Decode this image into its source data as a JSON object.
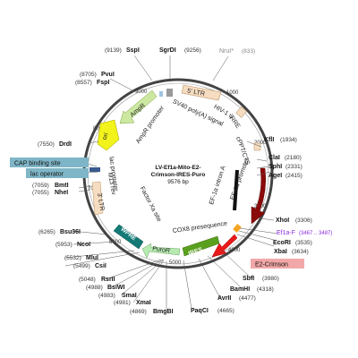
{
  "plasmid": {
    "name_line1": "LV-Ef1a-Mito-E2-",
    "name_line2": "Crimson-IRES-Puro",
    "length_label": "9576 bp"
  },
  "ticks": {
    "t1000": "1000",
    "t2000": "2000",
    "t3000": "3000",
    "t4000": "4000",
    "t5000": "5000",
    "t6000": "6000",
    "t7000": "7000",
    "t8000": "8000",
    "t9000": "9000"
  },
  "features": {
    "ltr5": "5' LTR",
    "hiv_psi": "HIV-1 ψ",
    "rre": "RRE",
    "cppt": "cPPT/CTS",
    "ef1a_promoter": "EF-1α promoter",
    "ef1a_intron": "EF-1α intron A",
    "cox8": "COX8 presequence",
    "ires": "IRES",
    "puror": "PuroR",
    "wpre": "WPRE",
    "factor_xa": "Factor Xa site",
    "ltr3": "3' LTR",
    "m13rev": "M13 rev",
    "lac_promoter": "lac promoter",
    "ori": "ori",
    "ampr": "AmpR",
    "ampr_promoter": "AmpR promoter",
    "sv40": "SV40 poly(A) signal"
  },
  "sites": {
    "sspi": {
      "name": "SspI",
      "pos": "(9139)"
    },
    "sgrdi": {
      "name": "SgrDI",
      "pos": "(9256)"
    },
    "nrui": {
      "name": "NruI*",
      "pos": "(833)"
    },
    "pvui": {
      "name": "PvuI",
      "pos": "(8705)"
    },
    "fspi": {
      "name": "FspI",
      "pos": "(8557)"
    },
    "drdi": {
      "name": "DrdI",
      "pos": "(7550)"
    },
    "kfli": {
      "name": "KflI",
      "pos": "(1934)"
    },
    "clai": {
      "name": "ClaI",
      "pos": "(2180)"
    },
    "sphi": {
      "name": "SphI",
      "pos": "(2331)"
    },
    "agei": {
      "name": "AgeI",
      "pos": "(2415)"
    },
    "bmti": {
      "name": "BmtI",
      "pos": "(7059)"
    },
    "nhei": {
      "name": "NheI",
      "pos": "(7055)"
    },
    "bsu36i": {
      "name": "Bsu36I",
      "pos": "(6265)"
    },
    "ncoi": {
      "name": "NcoI",
      "pos": "(5953)"
    },
    "mlui": {
      "name": "MluI",
      "pos": "(5532)"
    },
    "csii": {
      "name": "CsiI",
      "pos": "(5499)"
    },
    "rsrii": {
      "name": "RsrII",
      "pos": "(5048)"
    },
    "bsiwi": {
      "name": "BsiWI",
      "pos": "(4988)"
    },
    "smai": {
      "name": "SmaI",
      "pos": "(4983)"
    },
    "xmai": {
      "name": "XmaI",
      "pos": "(4981)"
    },
    "bmgbi": {
      "name": "BmgBI",
      "pos": "(4869)"
    },
    "paqci": {
      "name": "PaqCI",
      "pos": "(4665)"
    },
    "avrii": {
      "name": "AvrII",
      "pos": "(4477)"
    },
    "bamhi": {
      "name": "BamHI",
      "pos": "(4318)"
    },
    "sbfi": {
      "name": "SbfI",
      "pos": "(3980)"
    },
    "xhoi": {
      "name": "XhoI",
      "pos": "(3306)"
    },
    "ecori": {
      "name": "EcoRI",
      "pos": "(3535)"
    },
    "xbai": {
      "name": "XbaI",
      "pos": "(3634)"
    }
  },
  "primers": {
    "ef1a_f": {
      "name": "Ef1a-F",
      "pos": "(3467 .. 3487)"
    }
  },
  "boxes": {
    "cap_binding": "CAP binding site",
    "lac_operator": "lac operator",
    "e2_crimson": "E2-Crimson"
  },
  "colors": {
    "ltr": "#f6dcc0",
    "ampr": "#cce8a0",
    "ori": "#f2f21c",
    "cppt": "#8b0a0a",
    "ires": "#5aa01e",
    "wpre": "#137a76",
    "puror": "#b6eab0",
    "e2_crimson": "#e81a1a",
    "e2_crimson_box": "#f2a8a8",
    "cap_box": "#7fb6c7",
    "primer": "#8a2be2",
    "nrui": "#888888"
  }
}
